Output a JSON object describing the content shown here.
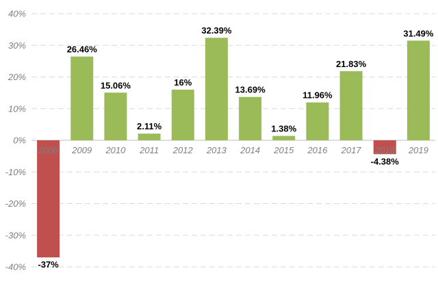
{
  "chart_data": {
    "type": "bar",
    "title": "",
    "xlabel": "",
    "ylabel": "",
    "categories": [
      "2008",
      "2009",
      "2010",
      "2011",
      "2012",
      "2013",
      "2014",
      "2015",
      "2016",
      "2017",
      "2018",
      "2019"
    ],
    "values": [
      -37,
      26.46,
      15.06,
      2.11,
      16,
      32.39,
      13.69,
      1.38,
      11.96,
      21.83,
      -4.38,
      31.49
    ],
    "data_labels": [
      "-37%",
      "26.46%",
      "15.06%",
      "2.11%",
      "16%",
      "32.39%",
      "13.69%",
      "1.38%",
      "11.96%",
      "21.83%",
      "-4.38%",
      "31.49%"
    ],
    "ylim": [
      -40,
      40
    ],
    "yticks": [
      40,
      30,
      20,
      10,
      0,
      -10,
      -20,
      -30,
      -40
    ],
    "ytick_labels": [
      "40%",
      "30%",
      "20%",
      "10%",
      "0%",
      "-10%",
      "-20%",
      "-30%",
      "-40%"
    ],
    "grid": true,
    "legend": "none",
    "colors": {
      "positive": "#9bbb59",
      "negative": "#c0504d"
    }
  }
}
